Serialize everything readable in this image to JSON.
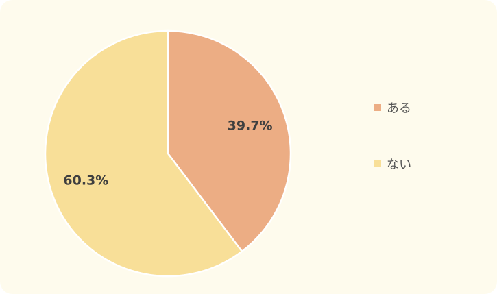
{
  "chart_data": {
    "type": "pie",
    "categories": [
      "ある",
      "ない"
    ],
    "values": [
      39.7,
      60.3
    ],
    "labels": [
      "39.7%",
      "60.3%"
    ],
    "colors": [
      "#ecad84",
      "#f8df98"
    ],
    "legend": "right"
  },
  "legend": {
    "items": [
      {
        "label": "ある",
        "color": "#ecad84"
      },
      {
        "label": "ない",
        "color": "#f8df98"
      }
    ]
  }
}
